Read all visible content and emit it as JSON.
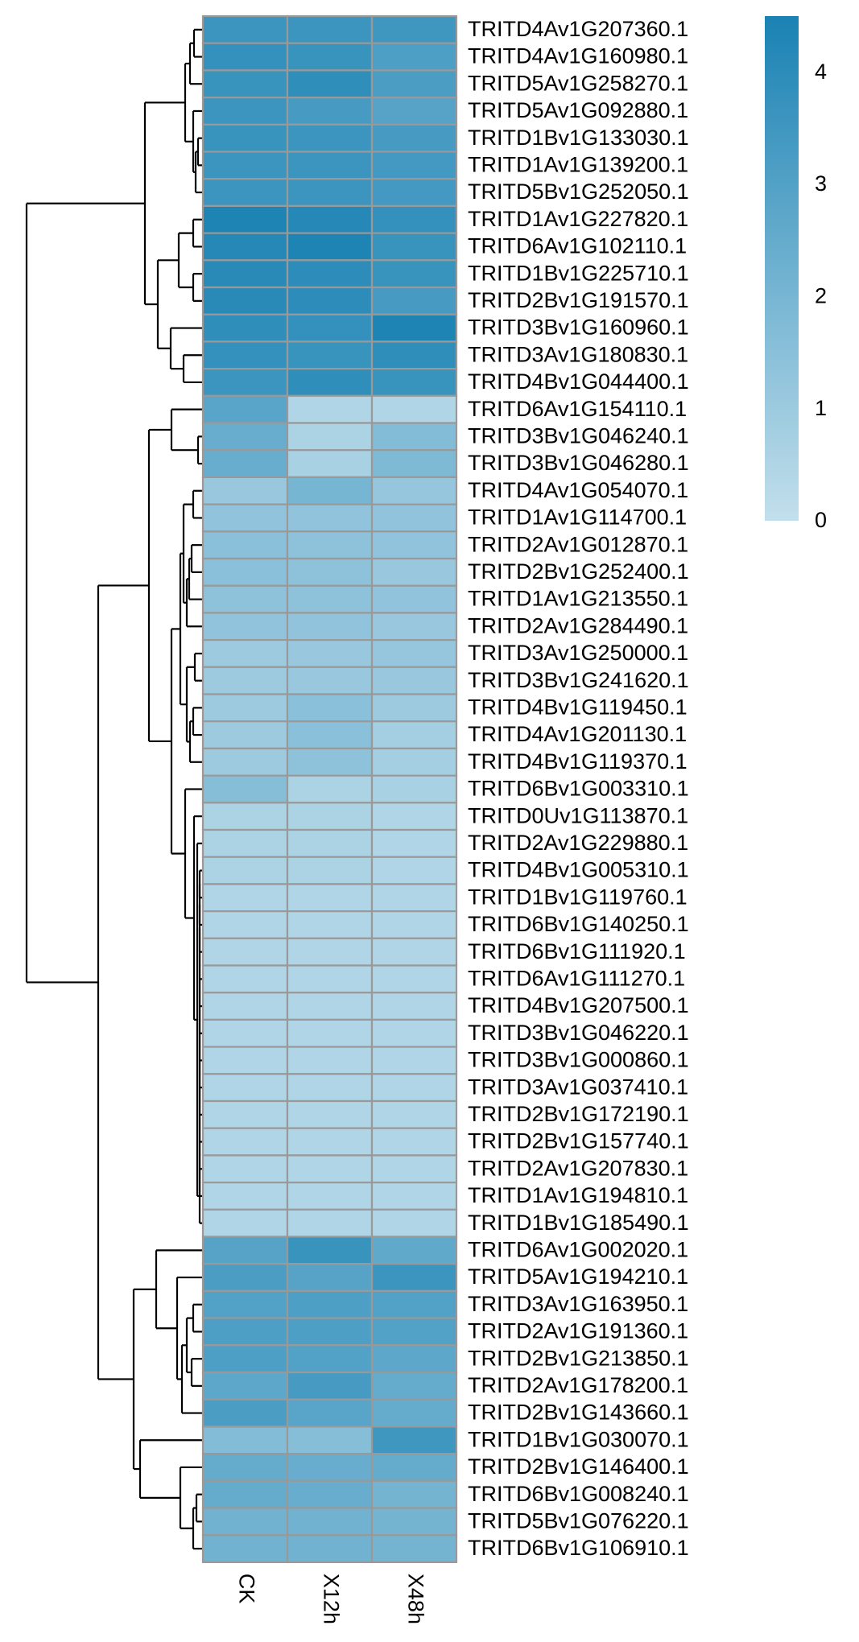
{
  "chart_data": {
    "type": "heatmap",
    "title": "",
    "xlabel": "",
    "ylabel": "",
    "columns": [
      "CK",
      "X12h",
      "X48h"
    ],
    "rows": [
      "TRITD4Av1G207360.1",
      "TRITD4Av1G160980.1",
      "TRITD5Av1G258270.1",
      "TRITD5Av1G092880.1",
      "TRITD1Bv1G133030.1",
      "TRITD1Av1G139200.1",
      "TRITD5Bv1G252050.1",
      "TRITD1Av1G227820.1",
      "TRITD6Av1G102110.1",
      "TRITD1Bv1G225710.1",
      "TRITD2Bv1G191570.1",
      "TRITD3Bv1G160960.1",
      "TRITD3Av1G180830.1",
      "TRITD4Bv1G044400.1",
      "TRITD6Av1G154110.1",
      "TRITD3Bv1G046240.1",
      "TRITD3Bv1G046280.1",
      "TRITD4Av1G054070.1",
      "TRITD1Av1G114700.1",
      "TRITD2Av1G012870.1",
      "TRITD2Bv1G252400.1",
      "TRITD1Av1G213550.1",
      "TRITD2Av1G284490.1",
      "TRITD3Av1G250000.1",
      "TRITD3Bv1G241620.1",
      "TRITD4Bv1G119450.1",
      "TRITD4Av1G201130.1",
      "TRITD4Bv1G119370.1",
      "TRITD6Bv1G003310.1",
      "TRITD0Uv1G113870.1",
      "TRITD2Av1G229880.1",
      "TRITD4Bv1G005310.1",
      "TRITD1Bv1G119760.1",
      "TRITD6Bv1G140250.1",
      "TRITD6Bv1G111920.1",
      "TRITD6Av1G111270.1",
      "TRITD4Bv1G207500.1",
      "TRITD3Bv1G046220.1",
      "TRITD3Bv1G000860.1",
      "TRITD3Av1G037410.1",
      "TRITD2Bv1G172190.1",
      "TRITD2Bv1G157740.1",
      "TRITD2Av1G207830.1",
      "TRITD1Av1G194810.1",
      "TRITD1Bv1G185490.1",
      "TRITD6Av1G002020.1",
      "TRITD5Av1G194210.1",
      "TRITD3Av1G163950.1",
      "TRITD2Av1G191360.1",
      "TRITD2Bv1G213850.1",
      "TRITD2Av1G178200.1",
      "TRITD2Bv1G143660.1",
      "TRITD1Bv1G030070.1",
      "TRITD2Bv1G146400.1",
      "TRITD6Bv1G008240.1",
      "TRITD5Bv1G076220.1",
      "TRITD6Bv1G106910.1"
    ],
    "values": [
      [
        3.6,
        3.6,
        3.5
      ],
      [
        3.8,
        3.7,
        3.1
      ],
      [
        3.7,
        3.9,
        3.2
      ],
      [
        3.6,
        3.3,
        2.9
      ],
      [
        3.7,
        3.6,
        3.3
      ],
      [
        3.6,
        3.6,
        3.4
      ],
      [
        3.6,
        3.6,
        3.4
      ],
      [
        4.4,
        4.2,
        3.8
      ],
      [
        4.2,
        4.4,
        3.7
      ],
      [
        4.1,
        4.0,
        3.7
      ],
      [
        4.1,
        4.0,
        3.3
      ],
      [
        3.9,
        3.8,
        4.4
      ],
      [
        3.8,
        3.7,
        3.9
      ],
      [
        3.6,
        3.9,
        3.7
      ],
      [
        2.8,
        0.5,
        0.5
      ],
      [
        2.4,
        0.6,
        1.7
      ],
      [
        2.4,
        0.7,
        1.8
      ],
      [
        1.1,
        2.0,
        1.2
      ],
      [
        1.3,
        1.3,
        1.3
      ],
      [
        1.5,
        1.4,
        1.3
      ],
      [
        1.5,
        1.4,
        1.1
      ],
      [
        1.4,
        1.4,
        1.3
      ],
      [
        1.3,
        1.3,
        1.1
      ],
      [
        1.0,
        1.1,
        1.2
      ],
      [
        1.0,
        1.1,
        1.1
      ],
      [
        1.0,
        1.5,
        1.0
      ],
      [
        1.0,
        1.5,
        0.8
      ],
      [
        1.0,
        1.4,
        0.8
      ],
      [
        1.6,
        0.6,
        0.7
      ],
      [
        0.6,
        0.6,
        0.5
      ],
      [
        0.6,
        0.6,
        0.5
      ],
      [
        0.6,
        0.6,
        0.5
      ],
      [
        0.5,
        0.5,
        0.5
      ],
      [
        0.5,
        0.5,
        0.5
      ],
      [
        0.5,
        0.5,
        0.5
      ],
      [
        0.5,
        0.5,
        0.5
      ],
      [
        0.5,
        0.5,
        0.5
      ],
      [
        0.5,
        0.5,
        0.5
      ],
      [
        0.5,
        0.5,
        0.5
      ],
      [
        0.5,
        0.5,
        0.5
      ],
      [
        0.5,
        0.5,
        0.5
      ],
      [
        0.5,
        0.5,
        0.5
      ],
      [
        0.5,
        0.5,
        0.5
      ],
      [
        0.5,
        0.5,
        0.5
      ],
      [
        0.5,
        0.5,
        0.5
      ],
      [
        2.9,
        3.7,
        2.6
      ],
      [
        3.2,
        2.9,
        3.6
      ],
      [
        3.0,
        3.1,
        3.0
      ],
      [
        3.1,
        3.1,
        3.0
      ],
      [
        3.1,
        3.0,
        2.7
      ],
      [
        2.7,
        3.3,
        2.5
      ],
      [
        3.2,
        2.8,
        2.5
      ],
      [
        1.7,
        1.6,
        3.5
      ],
      [
        2.5,
        2.4,
        2.5
      ],
      [
        2.5,
        2.4,
        2.1
      ],
      [
        2.2,
        2.2,
        2.1
      ],
      [
        2.2,
        2.2,
        2.1
      ]
    ],
    "colorbar": {
      "min": 0,
      "max": 4.5,
      "ticks": [
        "0",
        "1",
        "2",
        "3",
        "4"
      ],
      "low_color": "#c2dfec",
      "high_color": "#1a82b3"
    },
    "cell_border_color": "#999999",
    "dendrogram": "rows"
  }
}
